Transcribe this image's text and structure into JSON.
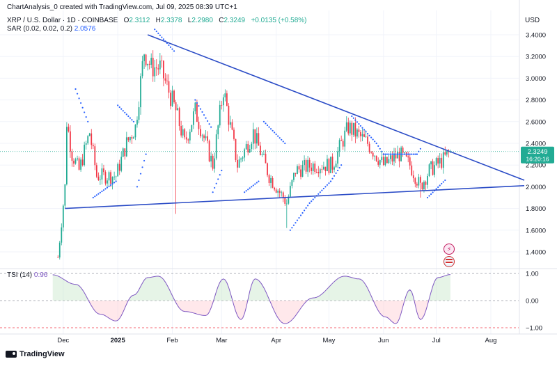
{
  "header": {
    "attribution": "ChartAnalysis_0 created with TradingView.com, Jul 09, 2025 08:39 UTC+1",
    "symbol": "XRP / U.S. Dollar · 1D · COINBASE",
    "open_label": "O",
    "open": "2.3112",
    "high_label": "H",
    "high": "2.3378",
    "low_label": "L",
    "low": "2.2980",
    "close_label": "C",
    "close": "2.3249",
    "change": "+0.0135 (+0.58%)",
    "sar_label": "SAR (0.02, 0.02, 0.2)",
    "sar_value": "2.0576",
    "currency": "USD"
  },
  "price_axis": {
    "ticks": [
      "3.4000",
      "3.2000",
      "3.0000",
      "2.8000",
      "2.6000",
      "2.4000",
      "2.2000",
      "2.0000",
      "1.8000",
      "1.6000",
      "1.4000"
    ],
    "current_price": "2.3249",
    "countdown": "16:20:16"
  },
  "tsi": {
    "label": "TSI (14)",
    "value": "0.96",
    "ticks": [
      "1.00",
      "0.00",
      "−1.00"
    ]
  },
  "time_axis": {
    "labels": [
      "Dec",
      "2025",
      "Feb",
      "Mar",
      "Apr",
      "May",
      "Jun",
      "Jul",
      "Aug"
    ]
  },
  "brand": "TradingView",
  "colors": {
    "up": "#22ab94",
    "down": "#f23645",
    "trendline": "#2a4bc6",
    "sar": "#2962ff",
    "tsi": "#7e57c2"
  },
  "chart_data": {
    "type": "candlestick",
    "symbol": "XRP / U.S. Dollar",
    "interval": "1D",
    "exchange": "COINBASE",
    "y_range": [
      1.2,
      3.55
    ],
    "anchors": [
      {
        "date": "2024-11-28",
        "price": 1.35
      },
      {
        "date": "2024-12-02",
        "price": 2.0
      },
      {
        "date": "2024-12-03",
        "price": 2.6
      },
      {
        "date": "2024-12-06",
        "price": 2.3
      },
      {
        "date": "2024-12-10",
        "price": 2.15
      },
      {
        "date": "2024-12-16",
        "price": 2.5
      },
      {
        "date": "2024-12-20",
        "price": 2.1
      },
      {
        "date": "2024-12-31",
        "price": 2.1
      },
      {
        "date": "2025-01-06",
        "price": 2.4
      },
      {
        "date": "2025-01-11",
        "price": 2.55
      },
      {
        "date": "2025-01-16",
        "price": 3.25
      },
      {
        "date": "2025-01-20",
        "price": 3.1
      },
      {
        "date": "2025-01-25",
        "price": 3.1
      },
      {
        "date": "2025-02-03",
        "price": 2.7
      },
      {
        "date": "2025-02-08",
        "price": 2.4
      },
      {
        "date": "2025-02-14",
        "price": 2.7
      },
      {
        "date": "2025-02-24",
        "price": 2.2
      },
      {
        "date": "2025-03-02",
        "price": 2.9
      },
      {
        "date": "2025-03-10",
        "price": 2.2
      },
      {
        "date": "2025-03-19",
        "price": 2.5
      },
      {
        "date": "2025-03-28",
        "price": 2.1
      },
      {
        "date": "2025-04-07",
        "price": 1.85
      },
      {
        "date": "2025-04-12",
        "price": 2.15
      },
      {
        "date": "2025-04-22",
        "price": 2.2
      },
      {
        "date": "2025-05-03",
        "price": 2.2
      },
      {
        "date": "2025-05-12",
        "price": 2.55
      },
      {
        "date": "2025-05-23",
        "price": 2.4
      },
      {
        "date": "2025-06-01",
        "price": 2.2
      },
      {
        "date": "2025-06-10",
        "price": 2.3
      },
      {
        "date": "2025-06-16",
        "price": 2.2
      },
      {
        "date": "2025-06-22",
        "price": 2.0
      },
      {
        "date": "2025-06-27",
        "price": 2.15
      },
      {
        "date": "2025-07-05",
        "price": 2.25
      },
      {
        "date": "2025-07-09",
        "price": 2.3249
      }
    ],
    "spikes": [
      {
        "date": "2025-02-03",
        "low": 1.75
      },
      {
        "date": "2025-04-07",
        "low": 1.62
      },
      {
        "date": "2025-06-22",
        "low": 1.9
      }
    ],
    "resistance_trendline": [
      {
        "date": "2025-01-18",
        "price": 3.4
      },
      {
        "date": "2025-08-20",
        "price": 2.06
      }
    ],
    "support_trendline": [
      {
        "date": "2024-12-02",
        "price": 1.8
      },
      {
        "date": "2025-08-20",
        "price": 2.01
      }
    ],
    "tsi_series": {
      "name": "TSI (14)",
      "latest": 0.96,
      "ylim": [
        -1.0,
        1.0
      ],
      "anchors": [
        {
          "date": "2024-11-25",
          "value": 0.95
        },
        {
          "date": "2024-12-08",
          "value": 0.6
        },
        {
          "date": "2024-12-22",
          "value": -0.5
        },
        {
          "date": "2024-12-31",
          "value": -0.75
        },
        {
          "date": "2025-01-10",
          "value": 0.2
        },
        {
          "date": "2025-01-18",
          "value": 0.85
        },
        {
          "date": "2025-01-24",
          "value": 0.9
        },
        {
          "date": "2025-02-08",
          "value": -0.4
        },
        {
          "date": "2025-02-20",
          "value": -0.55
        },
        {
          "date": "2025-03-02",
          "value": 0.8
        },
        {
          "date": "2025-03-12",
          "value": -0.7
        },
        {
          "date": "2025-03-20",
          "value": 0.8
        },
        {
          "date": "2025-04-06",
          "value": -0.85
        },
        {
          "date": "2025-04-22",
          "value": 0.1
        },
        {
          "date": "2025-05-10",
          "value": 0.9
        },
        {
          "date": "2025-05-18",
          "value": 0.8
        },
        {
          "date": "2025-06-02",
          "value": -0.6
        },
        {
          "date": "2025-06-08",
          "value": -0.85
        },
        {
          "date": "2025-06-16",
          "value": 0.4
        },
        {
          "date": "2025-06-22",
          "value": -0.7
        },
        {
          "date": "2025-07-02",
          "value": 0.85
        },
        {
          "date": "2025-07-09",
          "value": 0.96
        }
      ]
    },
    "sar_points": [
      {
        "date": "2024-12-05",
        "price": 1.45
      },
      {
        "date": "2024-12-08",
        "price": 2.9
      },
      {
        "date": "2024-12-15",
        "price": 2.6
      },
      {
        "date": "2024-12-18",
        "price": 1.9
      },
      {
        "date": "2024-12-31",
        "price": 2.05
      },
      {
        "date": "2025-01-01",
        "price": 2.75
      },
      {
        "date": "2025-01-10",
        "price": 2.6
      },
      {
        "date": "2025-01-12",
        "price": 2.0
      },
      {
        "date": "2025-01-17",
        "price": 2.3
      },
      {
        "date": "2025-01-22",
        "price": 3.45
      },
      {
        "date": "2025-02-02",
        "price": 3.25
      },
      {
        "date": "2025-02-07",
        "price": 2.3
      },
      {
        "date": "2025-02-10",
        "price": 1.9
      },
      {
        "date": "2025-02-14",
        "price": 2.8
      },
      {
        "date": "2025-02-23",
        "price": 2.55
      },
      {
        "date": "2025-02-24",
        "price": 1.95
      },
      {
        "date": "2025-03-01",
        "price": 2.15
      },
      {
        "date": "2025-03-06",
        "price": 3.05
      },
      {
        "date": "2025-03-12",
        "price": 2.6
      },
      {
        "date": "2025-03-14",
        "price": 1.95
      },
      {
        "date": "2025-03-22",
        "price": 2.05
      },
      {
        "date": "2025-03-25",
        "price": 2.6
      },
      {
        "date": "2025-04-06",
        "price": 2.4
      },
      {
        "date": "2025-04-09",
        "price": 1.6
      },
      {
        "date": "2025-04-20",
        "price": 1.85
      },
      {
        "date": "2025-05-02",
        "price": 2.05
      },
      {
        "date": "2025-05-08",
        "price": 2.2
      },
      {
        "date": "2025-05-14",
        "price": 2.65
      },
      {
        "date": "2025-05-28",
        "price": 2.4
      },
      {
        "date": "2025-06-01",
        "price": 2.3
      },
      {
        "date": "2025-06-10",
        "price": 2.3
      },
      {
        "date": "2025-06-20",
        "price": 2.3
      },
      {
        "date": "2025-06-22",
        "price": 2.35
      },
      {
        "date": "2025-06-26",
        "price": 1.9
      },
      {
        "date": "2025-07-06",
        "price": 2.06
      }
    ]
  }
}
